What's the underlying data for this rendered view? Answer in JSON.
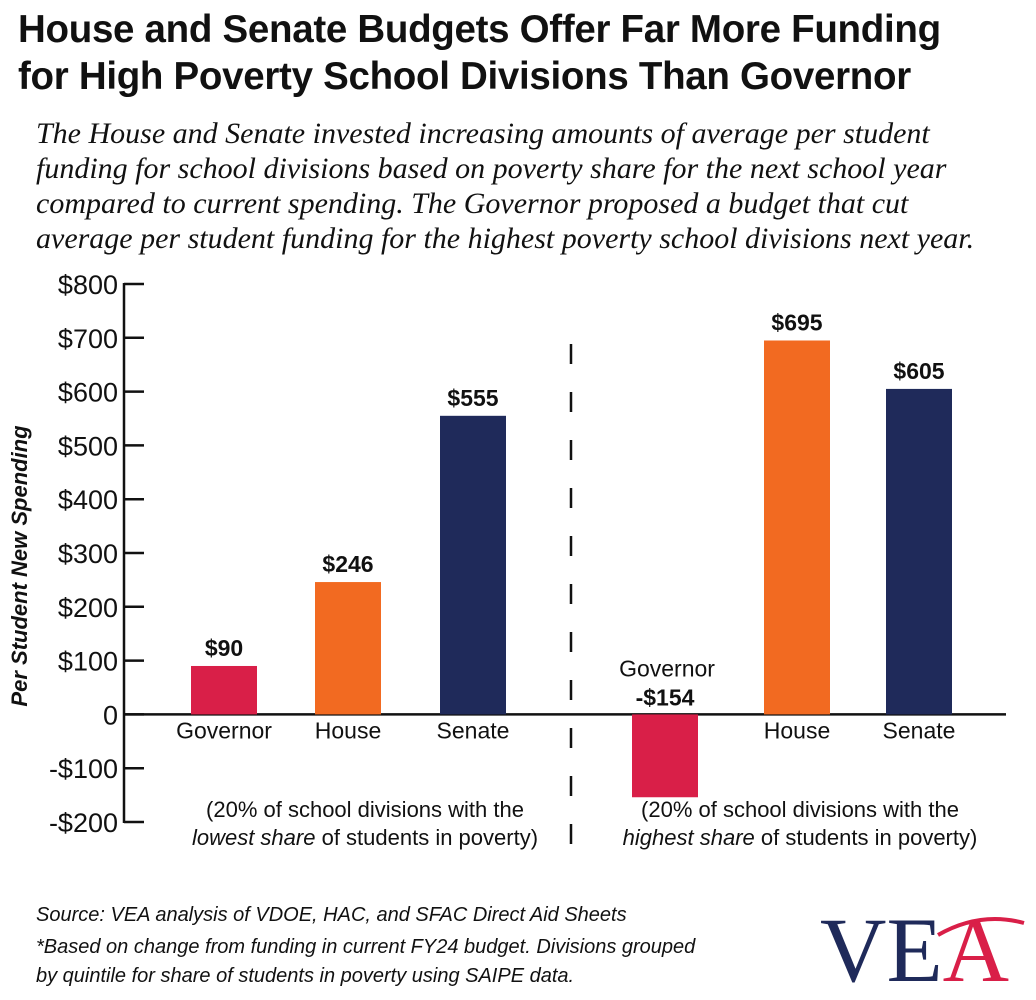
{
  "title_line1": "House and Senate Budgets Offer Far More Funding",
  "title_line2": "for High Poverty School Divisions Than Governor",
  "subtitle_lines": [
    "The House and Senate invested increasing amounts of average per student",
    "funding for school divisions based on poverty share for the next school year",
    "compared to current spending. The Governor proposed a budget that cut",
    "average per student funding for the highest poverty school divisions next year."
  ],
  "chart_data": {
    "type": "bar",
    "ylabel": "Per Student New Spending",
    "ylim": [
      -200,
      800
    ],
    "yticks": [
      {
        "value": 800,
        "label": "$800"
      },
      {
        "value": 700,
        "label": "$700"
      },
      {
        "value": 600,
        "label": "$600"
      },
      {
        "value": 500,
        "label": "$500"
      },
      {
        "value": 400,
        "label": "$400"
      },
      {
        "value": 300,
        "label": "$300"
      },
      {
        "value": 200,
        "label": "$200"
      },
      {
        "value": 100,
        "label": "$100"
      },
      {
        "value": 0,
        "label": "0"
      },
      {
        "value": -100,
        "label": "-$100"
      },
      {
        "value": -200,
        "label": "-$200"
      }
    ],
    "grid": false,
    "groups": [
      {
        "caption_line1": "(20% of school divisions with the",
        "caption_line2_em": "lowest share",
        "caption_line2_rest": " of students in poverty)",
        "bars": [
          {
            "category": "Governor",
            "value": 90,
            "label": "$90",
            "color": "#d91f48"
          },
          {
            "category": "House",
            "value": 246,
            "label": "$246",
            "color": "#f26a21"
          },
          {
            "category": "Senate",
            "value": 555,
            "label": "$555",
            "color": "#1f2a5a"
          }
        ]
      },
      {
        "caption_line1": "(20% of school divisions with the",
        "caption_line2_em": "highest share",
        "caption_line2_rest": " of students in poverty)",
        "bars": [
          {
            "category": "Governor",
            "value": -154,
            "label": "-$154",
            "color": "#d91f48"
          },
          {
            "category": "House",
            "value": 695,
            "label": "$695",
            "color": "#f26a21"
          },
          {
            "category": "Senate",
            "value": 605,
            "label": "$605",
            "color": "#1f2a5a"
          }
        ]
      }
    ]
  },
  "footnotes": {
    "source": "Source: VEA analysis of VDOE, HAC, and SFAC Direct Aid Sheets",
    "note_line1": "*Based on change from funding in current FY24 budget. Divisions grouped",
    "note_line2": "by quintile for share of students in poverty using SAIPE data."
  },
  "logo": {
    "text_main": "VE",
    "text_accent": "A",
    "color_main": "#1f2a5a",
    "color_accent": "#d91f48"
  }
}
